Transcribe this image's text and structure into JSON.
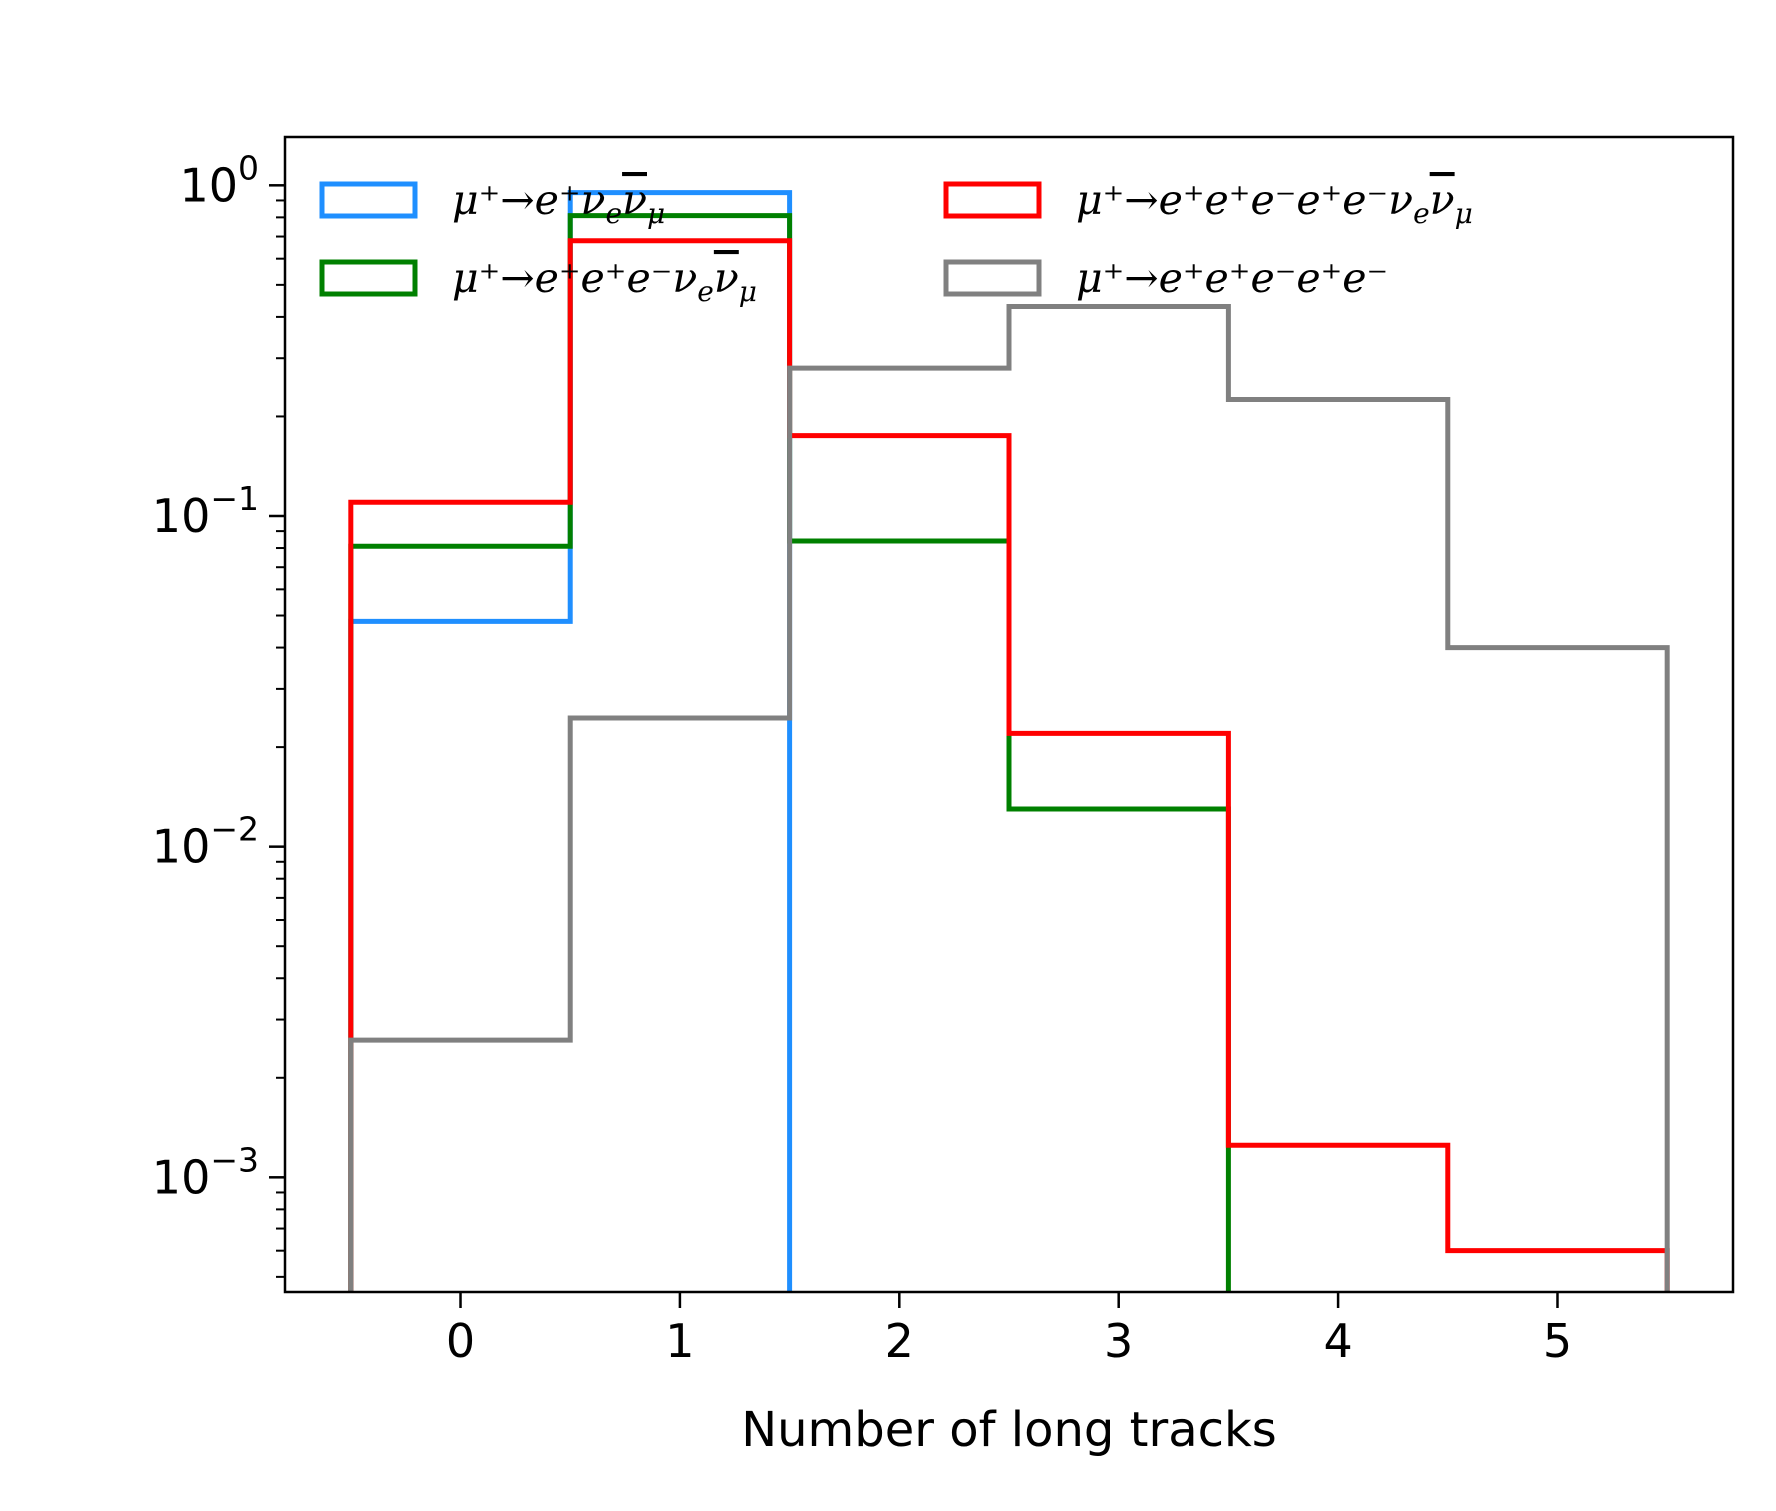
{
  "chart_data": {
    "type": "histogram-step",
    "xlabel": "Number of long tracks",
    "ylabel": "",
    "yscale": "log",
    "xlim": [
      -0.8,
      5.8
    ],
    "ylim": [
      0.00045,
      1.4
    ],
    "bin_edges": [
      -0.5,
      0.5,
      1.5,
      2.5,
      3.5,
      4.5,
      5.5
    ],
    "x_ticks": [
      {
        "value": 0,
        "label": "0"
      },
      {
        "value": 1,
        "label": "1"
      },
      {
        "value": 2,
        "label": "2"
      },
      {
        "value": 3,
        "label": "3"
      },
      {
        "value": 4,
        "label": "4"
      },
      {
        "value": 5,
        "label": "5"
      }
    ],
    "y_ticks": [
      {
        "value": 1,
        "base": "10",
        "exp": "0"
      },
      {
        "value": 0.1,
        "base": "10",
        "exp": "−1"
      },
      {
        "value": 0.01,
        "base": "10",
        "exp": "−2"
      },
      {
        "value": 0.001,
        "base": "10",
        "exp": "−3"
      }
    ],
    "legend": {
      "placement": "top",
      "columns": 2
    },
    "series": [
      {
        "name": "μ⁺→e⁺νₑν̄μ",
        "legend_base": "μ⁺→e⁺ν",
        "legend_sub": "e",
        "legend_nubar": "ν",
        "legend_sub2": "μ",
        "color": "#1f8fff",
        "values": [
          0.048,
          0.95,
          0,
          0,
          0,
          0
        ]
      },
      {
        "name": "μ⁺→e⁺e⁺e⁻νₑν̄μ",
        "legend_base": "μ⁺→e⁺e⁺e⁻ν",
        "legend_sub": "e",
        "legend_nubar": "ν",
        "legend_sub2": "μ",
        "color": "#008000",
        "values": [
          0.081,
          0.81,
          0.084,
          0.013,
          0,
          0
        ]
      },
      {
        "name": "μ⁺→e⁺e⁺e⁻e⁺e⁻νₑν̄μ",
        "legend_base": "μ⁺→e⁺e⁺e⁻e⁺e⁻ν",
        "legend_sub": "e",
        "legend_nubar": "ν",
        "legend_sub2": "μ",
        "color": "#ff0000",
        "values": [
          0.11,
          0.68,
          0.175,
          0.022,
          0.00125,
          0.0006
        ]
      },
      {
        "name": "μ⁺→e⁺e⁺e⁻e⁺e⁻",
        "legend_base": "μ⁺→e⁺e⁺e⁻e⁺e⁻",
        "legend_sub": "",
        "legend_nubar": "",
        "legend_sub2": "",
        "color": "#808080",
        "values": [
          0.0026,
          0.0245,
          0.28,
          0.43,
          0.225,
          0.04
        ]
      }
    ]
  }
}
